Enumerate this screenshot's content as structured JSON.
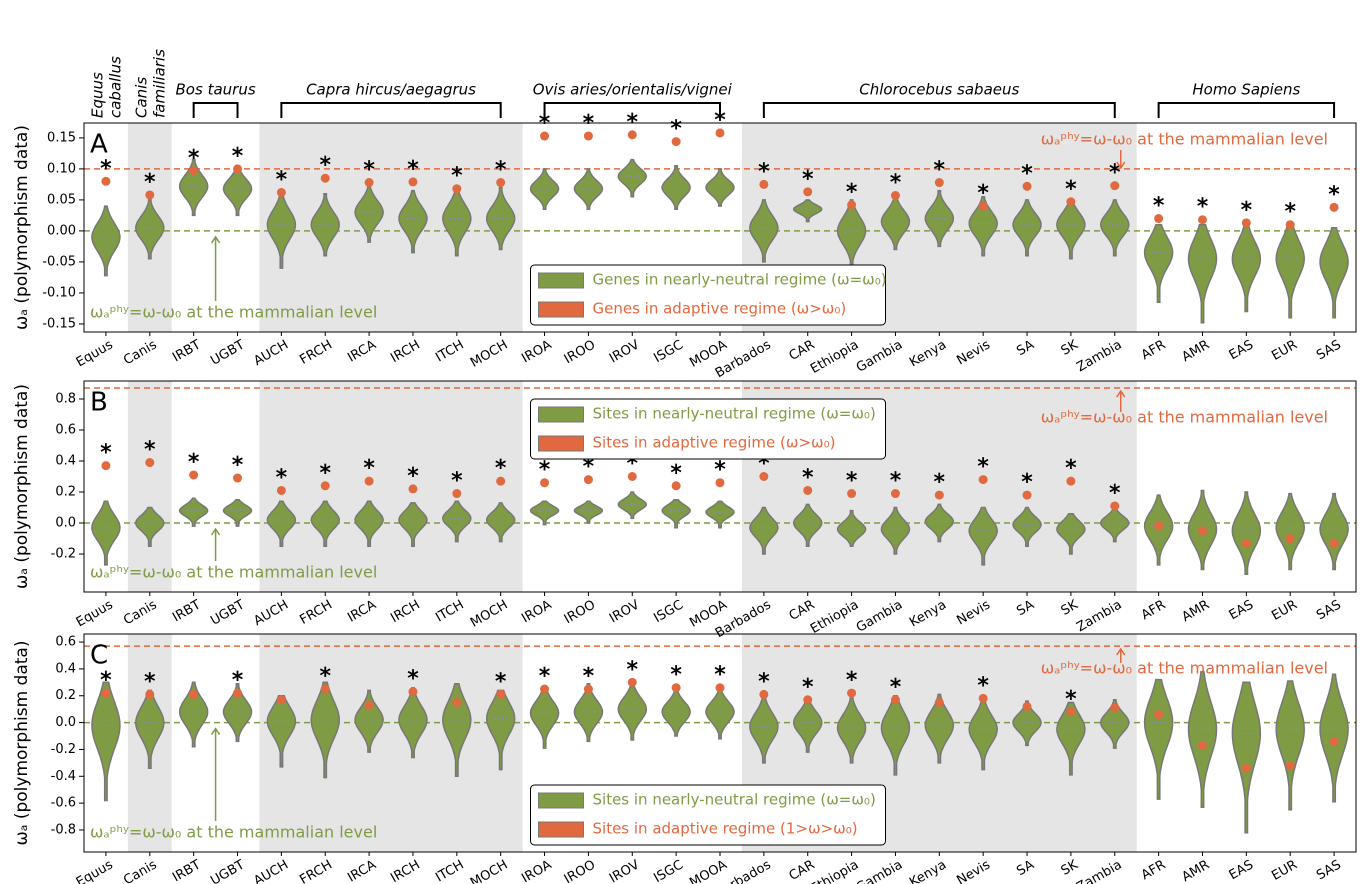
{
  "species_groups": [
    {
      "name": [
        "Equus",
        "caballus"
      ],
      "members": [
        "Equus"
      ],
      "shaded": false
    },
    {
      "name": [
        "Canis",
        "familiaris"
      ],
      "members": [
        "Canis"
      ],
      "shaded": true
    },
    {
      "name": [
        "Bos taurus"
      ],
      "members": [
        "IRBT",
        "UGBT"
      ],
      "shaded": false
    },
    {
      "name": [
        "Capra hircus/aegagrus"
      ],
      "members": [
        "AUCH",
        "FRCH",
        "IRCA",
        "IRCH",
        "ITCH",
        "MOCH"
      ],
      "shaded": true
    },
    {
      "name": [
        "Ovis aries/orientalis/vignei"
      ],
      "members": [
        "IROA",
        "IROO",
        "IROV",
        "ISGC",
        "MOOA"
      ],
      "shaded": false
    },
    {
      "name": [
        "Chlorocebus sabaeus"
      ],
      "members": [
        "Barbados",
        "CAR",
        "Ethiopia",
        "Gambia",
        "Kenya",
        "Nevis",
        "SA",
        "SK",
        "Zambia"
      ],
      "shaded": true
    },
    {
      "name": [
        "Homo Sapiens"
      ],
      "members": [
        "AFR",
        "AMR",
        "EAS",
        "EUR",
        "SAS"
      ],
      "shaded": false
    }
  ],
  "chart_data": [
    {
      "type": "violin",
      "panel": "A",
      "ylabel": "ωₐ (polymorphism data)",
      "categories": [
        "Equus",
        "Canis",
        "IRBT",
        "UGBT",
        "AUCH",
        "FRCH",
        "IRCA",
        "IRCH",
        "ITCH",
        "MOCH",
        "IROA",
        "IROO",
        "IROV",
        "ISGC",
        "MOOA",
        "Barbados",
        "CAR",
        "Ethiopia",
        "Gambia",
        "Kenya",
        "Nevis",
        "SA",
        "SK",
        "Zambia",
        "AFR",
        "AMR",
        "EAS",
        "EUR",
        "SAS"
      ],
      "ylim": [
        -0.163,
        0.174
      ],
      "yticks": [
        {
          "value": -0.15,
          "label": "-0.15"
        },
        {
          "value": -0.1,
          "label": "-0.10"
        },
        {
          "value": -0.05,
          "label": "-0.05"
        },
        {
          "value": 0,
          "label": "0.00"
        },
        {
          "value": 0.05,
          "label": "0.05"
        },
        {
          "value": 0.1,
          "label": "0.10"
        },
        {
          "value": 0.15,
          "label": "0.15"
        }
      ],
      "legend": "lower center",
      "series": [
        {
          "name": "Genes in nearly-neutral regime (ω=ω₀)",
          "color": "#7f9c45",
          "values": [
            -0.01,
            0.005,
            0.072,
            0.068,
            0.01,
            0.01,
            0.03,
            0.02,
            0.02,
            0.02,
            0.068,
            0.068,
            0.088,
            0.07,
            0.07,
            0.005,
            0.035,
            0,
            0.015,
            0.02,
            0.012,
            0.01,
            0.01,
            0.01,
            -0.035,
            -0.045,
            -0.045,
            -0.045,
            -0.05
          ],
          "min": [
            -0.072,
            -0.045,
            0.025,
            0.025,
            -0.06,
            -0.04,
            -0.018,
            -0.035,
            -0.04,
            -0.03,
            0.035,
            0.035,
            0.055,
            0.035,
            0.04,
            -0.05,
            0.015,
            -0.06,
            -0.03,
            -0.025,
            -0.04,
            -0.04,
            -0.045,
            -0.04,
            -0.115,
            -0.148,
            -0.13,
            -0.14,
            -0.14
          ],
          "max": [
            0.04,
            0.05,
            0.115,
            0.105,
            0.055,
            0.06,
            0.075,
            0.065,
            0.07,
            0.07,
            0.1,
            0.1,
            0.115,
            0.105,
            0.1,
            0.05,
            0.05,
            0.05,
            0.06,
            0.065,
            0.055,
            0.05,
            0.05,
            0.05,
            0.01,
            0.01,
            0.01,
            0.01,
            0.005
          ]
        },
        {
          "name": "Genes in adaptive regime (ω>ω₀)",
          "color": "#e0693f",
          "values": [
            0.08,
            0.058,
            0.097,
            0.1,
            0.062,
            0.085,
            0.078,
            0.079,
            0.068,
            0.078,
            0.153,
            0.153,
            0.155,
            0.144,
            0.158,
            0.075,
            0.063,
            0.042,
            0.057,
            0.078,
            0.04,
            0.072,
            0.047,
            0.073,
            0.02,
            0.018,
            0.013,
            0.01,
            0.038
          ]
        }
      ],
      "significance_marker": "*",
      "significant": [
        true,
        true,
        true,
        true,
        true,
        true,
        true,
        true,
        true,
        true,
        true,
        true,
        true,
        true,
        true,
        true,
        true,
        true,
        true,
        true,
        true,
        true,
        true,
        true,
        true,
        true,
        true,
        true,
        true
      ],
      "reference_lines": [
        {
          "value": 0.1,
          "color": "#e0693f",
          "label": "ωₐᵖʰʸ=ω-ω₀ at the mammalian level"
        },
        {
          "value": 0,
          "color": "#7f9c45",
          "label": "ωₐᵖʰʸ=ω-ω₀ at the mammalian level"
        }
      ]
    },
    {
      "type": "violin",
      "panel": "B",
      "ylabel": "ωₐ (polymorphism data)",
      "categories": [
        "Equus",
        "Canis",
        "IRBT",
        "UGBT",
        "AUCH",
        "FRCH",
        "IRCA",
        "IRCH",
        "ITCH",
        "MOCH",
        "IROA",
        "IROO",
        "IROV",
        "ISGC",
        "MOOA",
        "Barbados",
        "CAR",
        "Ethiopia",
        "Gambia",
        "Kenya",
        "Nevis",
        "SA",
        "SK",
        "Zambia",
        "AFR",
        "AMR",
        "EAS",
        "EUR",
        "SAS"
      ],
      "ylim": [
        -0.445,
        0.916
      ],
      "yticks": [
        -0.2,
        {
          "value": 0,
          "label": "0.0"
        },
        0.2,
        0.4,
        0.6,
        0.8
      ],
      "legend": "upper center",
      "series": [
        {
          "name": "Sites in nearly-neutral regime (ω=ω₀)",
          "color": "#7f9c45",
          "values": [
            -0.03,
            0,
            0.08,
            0.08,
            0.02,
            0.02,
            0.02,
            0.02,
            0.03,
            0.02,
            0.08,
            0.08,
            0.12,
            0.08,
            0.07,
            -0.03,
            0,
            -0.04,
            -0.04,
            0.01,
            -0.05,
            -0.01,
            -0.04,
            0,
            -0.02,
            -0.04,
            -0.05,
            -0.03,
            -0.04
          ],
          "min": [
            -0.27,
            -0.15,
            -0.02,
            -0.02,
            -0.15,
            -0.15,
            -0.15,
            -0.15,
            -0.12,
            -0.12,
            -0.01,
            0,
            0.03,
            -0.03,
            -0.03,
            -0.2,
            -0.15,
            -0.15,
            -0.2,
            -0.12,
            -0.27,
            -0.15,
            -0.2,
            -0.12,
            -0.27,
            -0.3,
            -0.33,
            -0.3,
            -0.3
          ],
          "max": [
            0.14,
            0.1,
            0.16,
            0.15,
            0.14,
            0.14,
            0.14,
            0.13,
            0.14,
            0.13,
            0.14,
            0.14,
            0.2,
            0.15,
            0.14,
            0.1,
            0.12,
            0.08,
            0.1,
            0.12,
            0.1,
            0.1,
            0.06,
            0.1,
            0.18,
            0.21,
            0.2,
            0.19,
            0.19
          ]
        },
        {
          "name": "Sites in adaptive regime (ω>ω₀)",
          "color": "#e0693f",
          "values": [
            0.37,
            0.39,
            0.31,
            0.29,
            0.21,
            0.24,
            0.27,
            0.22,
            0.19,
            0.27,
            0.26,
            0.28,
            0.3,
            0.24,
            0.26,
            0.3,
            0.21,
            0.19,
            0.19,
            0.18,
            0.28,
            0.18,
            0.27,
            0.11,
            -0.02,
            -0.05,
            -0.13,
            -0.1,
            -0.13
          ]
        }
      ],
      "significance_marker": "*",
      "significant": [
        true,
        true,
        true,
        true,
        true,
        true,
        true,
        true,
        true,
        true,
        true,
        true,
        true,
        true,
        true,
        true,
        true,
        true,
        true,
        true,
        true,
        true,
        true,
        true,
        false,
        false,
        false,
        false,
        false
      ],
      "reference_lines": [
        {
          "value": 0.871,
          "color": "#e0693f",
          "label": "ωₐᵖʰʸ=ω-ω₀ at the mammalian level"
        },
        {
          "value": 0,
          "color": "#7f9c45",
          "label": "ωₐᵖʰʸ=ω-ω₀ at the mammalian level"
        }
      ]
    },
    {
      "type": "violin",
      "panel": "C",
      "ylabel": "ωₐ (polymorphism data)",
      "categories": [
        "Equus",
        "Canis",
        "IRBT",
        "UGBT",
        "AUCH",
        "FRCH",
        "IRCA",
        "IRCH",
        "ITCH",
        "MOCH",
        "IROA",
        "IROO",
        "IROV",
        "ISGC",
        "MOOA",
        "Barbados",
        "CAR",
        "Ethiopia",
        "Gambia",
        "Kenya",
        "Nevis",
        "SA",
        "SK",
        "Zambia",
        "AFR",
        "AMR",
        "EAS",
        "EUR",
        "SAS"
      ],
      "ylim": [
        -0.964,
        0.66
      ],
      "yticks": [
        -0.8,
        -0.6,
        -0.4,
        -0.2,
        {
          "value": 0,
          "label": "0.0"
        },
        0.2,
        0.4,
        0.6
      ],
      "legend": "lower center",
      "series": [
        {
          "name": "Sites in nearly-neutral regime  (ω=ω₀)",
          "color": "#7f9c45",
          "values": [
            -0.02,
            0,
            0.08,
            0.08,
            0.01,
            0.02,
            0.02,
            0.02,
            0.02,
            0.03,
            0.07,
            0.08,
            0.1,
            0.08,
            0.08,
            -0.03,
            0,
            -0.04,
            -0.04,
            -0.02,
            -0.05,
            0,
            -0.05,
            0,
            0,
            -0.05,
            -0.08,
            -0.05,
            -0.05
          ],
          "min": [
            -0.58,
            -0.34,
            -0.18,
            -0.14,
            -0.33,
            -0.41,
            -0.22,
            -0.26,
            -0.4,
            -0.35,
            -0.19,
            -0.14,
            -0.13,
            -0.1,
            -0.12,
            -0.3,
            -0.22,
            -0.3,
            -0.39,
            -0.3,
            -0.35,
            -0.17,
            -0.39,
            -0.19,
            -0.57,
            -0.63,
            -0.82,
            -0.65,
            -0.59
          ],
          "max": [
            0.3,
            0.24,
            0.3,
            0.29,
            0.2,
            0.3,
            0.24,
            0.26,
            0.29,
            0.24,
            0.26,
            0.29,
            0.3,
            0.27,
            0.26,
            0.21,
            0.19,
            0.2,
            0.2,
            0.21,
            0.17,
            0.16,
            0.15,
            0.17,
            0.32,
            0.38,
            0.3,
            0.31,
            0.36
          ]
        },
        {
          "name": "Sites in adaptive regime (1>ω>ω₀)",
          "color": "#e0693f",
          "values": [
            0.22,
            0.21,
            0.21,
            0.22,
            0.17,
            0.25,
            0.13,
            0.23,
            0.15,
            0.21,
            0.25,
            0.25,
            0.3,
            0.26,
            0.26,
            0.21,
            0.17,
            0.22,
            0.17,
            0.15,
            0.18,
            0.12,
            0.08,
            0.11,
            0.06,
            -0.17,
            -0.34,
            -0.32,
            -0.14
          ]
        }
      ],
      "significance_marker": "*",
      "significant": [
        true,
        true,
        false,
        true,
        false,
        true,
        false,
        true,
        false,
        true,
        true,
        true,
        true,
        true,
        true,
        true,
        true,
        true,
        true,
        false,
        true,
        false,
        true,
        false,
        false,
        false,
        false,
        false,
        false
      ],
      "reference_lines": [
        {
          "value": 0.57,
          "color": "#e0693f",
          "label": "ωₐᵖʰʸ=ω-ω₀ at the mammalian level"
        },
        {
          "value": 0,
          "color": "#7f9c45",
          "label": "ωₐᵖʰʸ=ω-ω₀ at the mammalian level"
        }
      ]
    }
  ]
}
